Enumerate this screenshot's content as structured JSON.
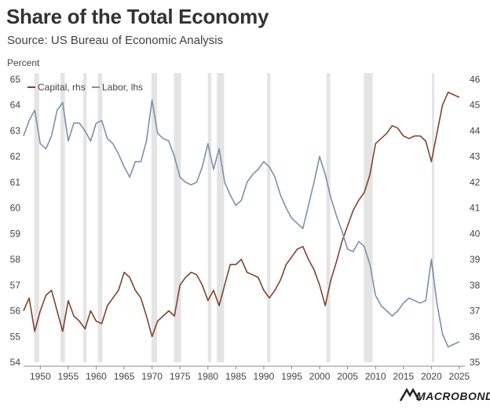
{
  "title": "Share of the Total Economy",
  "subtitle": "Source: US Bureau of Economic Analysis",
  "branding": "MACROBOND",
  "colors": {
    "capital": "#7f4530",
    "labor": "#7b91aa",
    "recession": "#e4e4e4",
    "axis": "#888888"
  },
  "chart_data": {
    "type": "line",
    "unit_label": "Percent",
    "x_ticks": [
      1950,
      1955,
      1960,
      1965,
      1970,
      1975,
      1980,
      1985,
      1990,
      1995,
      2000,
      2005,
      2010,
      2015,
      2020,
      2025
    ],
    "xlim": [
      1947,
      2026
    ],
    "left_axis": {
      "ylim": [
        54,
        65
      ],
      "ticks": [
        54,
        55,
        56,
        57,
        58,
        59,
        60,
        61,
        62,
        63,
        64,
        65
      ]
    },
    "right_axis": {
      "ylim": [
        35,
        46
      ],
      "ticks": [
        35,
        36,
        37,
        38,
        39,
        40,
        41,
        42,
        43,
        44,
        45,
        46
      ]
    },
    "recessions": [
      [
        1948.9,
        1949.8
      ],
      [
        1953.6,
        1954.4
      ],
      [
        1957.7,
        1958.3
      ],
      [
        1960.3,
        1961.1
      ],
      [
        1969.9,
        1970.9
      ],
      [
        1973.9,
        1975.2
      ],
      [
        1980.0,
        1980.6
      ],
      [
        1981.6,
        1982.9
      ],
      [
        1990.6,
        1991.2
      ],
      [
        2001.2,
        2001.9
      ],
      [
        2007.9,
        2009.5
      ],
      [
        2020.1,
        2020.5
      ]
    ],
    "series": [
      {
        "name": "Capital, rhs",
        "axis": "right",
        "color": "#7f4530",
        "points": [
          [
            1947,
            37.0
          ],
          [
            1948,
            37.5
          ],
          [
            1949,
            36.2
          ],
          [
            1950,
            37.0
          ],
          [
            1951,
            37.6
          ],
          [
            1952,
            37.8
          ],
          [
            1953,
            37.0
          ],
          [
            1954,
            36.2
          ],
          [
            1955,
            37.4
          ],
          [
            1956,
            36.8
          ],
          [
            1957,
            36.6
          ],
          [
            1958,
            36.3
          ],
          [
            1959,
            37.0
          ],
          [
            1960,
            36.6
          ],
          [
            1961,
            36.5
          ],
          [
            1962,
            37.2
          ],
          [
            1963,
            37.5
          ],
          [
            1964,
            37.8
          ],
          [
            1965,
            38.5
          ],
          [
            1966,
            38.3
          ],
          [
            1967,
            37.8
          ],
          [
            1968,
            37.5
          ],
          [
            1969,
            36.8
          ],
          [
            1970,
            36.0
          ],
          [
            1971,
            36.6
          ],
          [
            1972,
            36.8
          ],
          [
            1973,
            37.0
          ],
          [
            1974,
            36.8
          ],
          [
            1975,
            38.0
          ],
          [
            1976,
            38.3
          ],
          [
            1977,
            38.5
          ],
          [
            1978,
            38.4
          ],
          [
            1979,
            38.0
          ],
          [
            1980,
            37.4
          ],
          [
            1981,
            37.8
          ],
          [
            1982,
            37.2
          ],
          [
            1983,
            38.0
          ],
          [
            1984,
            38.8
          ],
          [
            1985,
            38.8
          ],
          [
            1986,
            39.0
          ],
          [
            1987,
            38.5
          ],
          [
            1988,
            38.4
          ],
          [
            1989,
            38.3
          ],
          [
            1990,
            37.8
          ],
          [
            1991,
            37.5
          ],
          [
            1992,
            37.8
          ],
          [
            1993,
            38.2
          ],
          [
            1994,
            38.8
          ],
          [
            1995,
            39.1
          ],
          [
            1996,
            39.4
          ],
          [
            1997,
            39.5
          ],
          [
            1998,
            39.0
          ],
          [
            1999,
            38.6
          ],
          [
            2000,
            38.0
          ],
          [
            2001,
            37.2
          ],
          [
            2002,
            38.2
          ],
          [
            2003,
            38.9
          ],
          [
            2004,
            39.7
          ],
          [
            2005,
            40.3
          ],
          [
            2006,
            40.9
          ],
          [
            2007,
            41.3
          ],
          [
            2008,
            41.6
          ],
          [
            2009,
            42.3
          ],
          [
            2010,
            43.5
          ],
          [
            2011,
            43.7
          ],
          [
            2012,
            43.9
          ],
          [
            2013,
            44.2
          ],
          [
            2014,
            44.1
          ],
          [
            2015,
            43.8
          ],
          [
            2016,
            43.7
          ],
          [
            2017,
            43.8
          ],
          [
            2018,
            43.8
          ],
          [
            2019,
            43.6
          ],
          [
            2020,
            42.8
          ],
          [
            2021,
            43.9
          ],
          [
            2022,
            45.0
          ],
          [
            2023,
            45.5
          ],
          [
            2024,
            45.4
          ],
          [
            2025,
            45.3
          ]
        ]
      },
      {
        "name": "Labor, lhs",
        "axis": "left",
        "color": "#7b91aa",
        "points": [
          [
            1947,
            62.8
          ],
          [
            1948,
            63.4
          ],
          [
            1949,
            63.8
          ],
          [
            1950,
            62.5
          ],
          [
            1951,
            62.3
          ],
          [
            1952,
            62.8
          ],
          [
            1953,
            63.8
          ],
          [
            1954,
            64.1
          ],
          [
            1955,
            62.6
          ],
          [
            1956,
            63.3
          ],
          [
            1957,
            63.3
          ],
          [
            1958,
            63.0
          ],
          [
            1959,
            62.6
          ],
          [
            1960,
            63.3
          ],
          [
            1961,
            63.4
          ],
          [
            1962,
            62.7
          ],
          [
            1963,
            62.5
          ],
          [
            1964,
            62.1
          ],
          [
            1965,
            61.6
          ],
          [
            1966,
            61.2
          ],
          [
            1967,
            61.8
          ],
          [
            1968,
            61.8
          ],
          [
            1969,
            62.6
          ],
          [
            1970,
            64.2
          ],
          [
            1971,
            62.9
          ],
          [
            1972,
            62.7
          ],
          [
            1973,
            62.6
          ],
          [
            1974,
            62.0
          ],
          [
            1975,
            61.2
          ],
          [
            1976,
            61.0
          ],
          [
            1977,
            60.9
          ],
          [
            1978,
            61.0
          ],
          [
            1979,
            61.6
          ],
          [
            1980,
            62.5
          ],
          [
            1981,
            61.5
          ],
          [
            1982,
            62.3
          ],
          [
            1983,
            61.0
          ],
          [
            1984,
            60.5
          ],
          [
            1985,
            60.1
          ],
          [
            1986,
            60.3
          ],
          [
            1987,
            61.0
          ],
          [
            1988,
            61.3
          ],
          [
            1989,
            61.5
          ],
          [
            1990,
            61.8
          ],
          [
            1991,
            61.6
          ],
          [
            1992,
            61.2
          ],
          [
            1993,
            60.5
          ],
          [
            1994,
            60.0
          ],
          [
            1995,
            59.6
          ],
          [
            1996,
            59.4
          ],
          [
            1997,
            59.2
          ],
          [
            1998,
            60.1
          ],
          [
            1999,
            61.0
          ],
          [
            2000,
            62.0
          ],
          [
            2001,
            61.3
          ],
          [
            2002,
            60.4
          ],
          [
            2003,
            59.7
          ],
          [
            2004,
            59.1
          ],
          [
            2005,
            58.4
          ],
          [
            2006,
            58.3
          ],
          [
            2007,
            58.7
          ],
          [
            2008,
            58.5
          ],
          [
            2009,
            57.8
          ],
          [
            2010,
            56.6
          ],
          [
            2011,
            56.2
          ],
          [
            2012,
            56.0
          ],
          [
            2013,
            55.8
          ],
          [
            2014,
            56.0
          ],
          [
            2015,
            56.3
          ],
          [
            2016,
            56.5
          ],
          [
            2017,
            56.4
          ],
          [
            2018,
            56.3
          ],
          [
            2019,
            56.4
          ],
          [
            2020,
            58.0
          ],
          [
            2021,
            56.3
          ],
          [
            2022,
            55.1
          ],
          [
            2023,
            54.6
          ],
          [
            2024,
            54.7
          ],
          [
            2025,
            54.8
          ]
        ]
      }
    ]
  }
}
